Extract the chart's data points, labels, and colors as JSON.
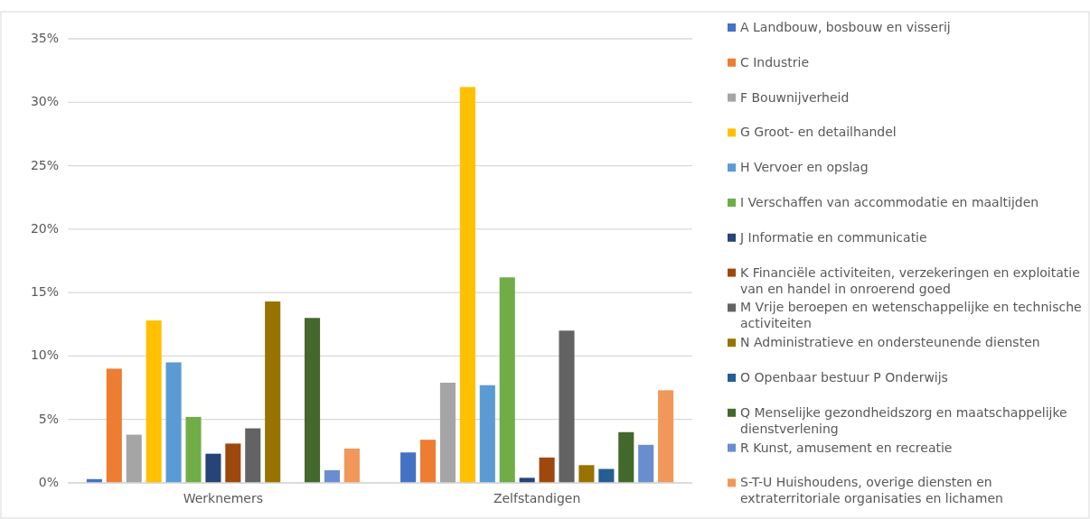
{
  "chart_data": {
    "type": "bar",
    "categories": [
      "Werknemers",
      "Zelfstandigen"
    ],
    "series": [
      {
        "name": "A Landbouw, bosbouw en visserij",
        "color": "#4472c4",
        "values": [
          0.3,
          2.4
        ]
      },
      {
        "name": "C Industrie",
        "color": "#ed7d31",
        "values": [
          9.0,
          3.4
        ]
      },
      {
        "name": "F Bouwnijverheid",
        "color": "#a5a5a5",
        "values": [
          3.8,
          7.9
        ]
      },
      {
        "name": "G Groot- en detailhandel",
        "color": "#ffc000",
        "values": [
          12.8,
          31.2
        ]
      },
      {
        "name": "H Vervoer en opslag",
        "color": "#5b9bd5",
        "values": [
          9.5,
          7.7
        ]
      },
      {
        "name": "I Verschaffen van accommodatie en maaltijden",
        "color": "#70ad47",
        "values": [
          5.2,
          16.2
        ]
      },
      {
        "name": "J Informatie en communicatie",
        "color": "#264478",
        "values": [
          2.3,
          0.4
        ]
      },
      {
        "name": "K Financiële activiteiten, verzekeringen en exploitatie van en handel in onroerend goed",
        "color": "#9e480e",
        "values": [
          3.1,
          2.0
        ]
      },
      {
        "name": "M Vrije beroepen en wetenschappelijke en technische activiteiten",
        "color": "#636363",
        "values": [
          4.3,
          12.0
        ]
      },
      {
        "name": "N Administratieve en ondersteunende diensten",
        "color": "#997300",
        "values": [
          14.3,
          1.4
        ]
      },
      {
        "name": "O Openbaar bestuur P Onderwijs",
        "color": "#255e91",
        "values": [
          null,
          1.1
        ]
      },
      {
        "name": "Q Menselijke gezondheidszorg en maatschappelijke dienstverlening",
        "color": "#43682b",
        "values": [
          13.0,
          4.0
        ]
      },
      {
        "name": "R Kunst, amusement en recreatie",
        "color": "#698ed0",
        "values": [
          1.0,
          3.0
        ]
      },
      {
        "name": "S-T-U Huishoudens, overige diensten en extraterritoriale organisaties en lichamen",
        "color": "#f1975a",
        "values": [
          2.7,
          7.3
        ]
      }
    ],
    "ylim": [
      0,
      35
    ],
    "yticks": [
      {
        "value": 0,
        "label": "0%"
      },
      {
        "value": 5,
        "label": "5%"
      },
      {
        "value": 10,
        "label": "10%"
      },
      {
        "value": 15,
        "label": "15%"
      },
      {
        "value": 20,
        "label": "20%"
      },
      {
        "value": 25,
        "label": "25%"
      },
      {
        "value": 30,
        "label": "30%"
      },
      {
        "value": 35,
        "label": "35%"
      }
    ],
    "grid": "y",
    "legend": "right"
  }
}
